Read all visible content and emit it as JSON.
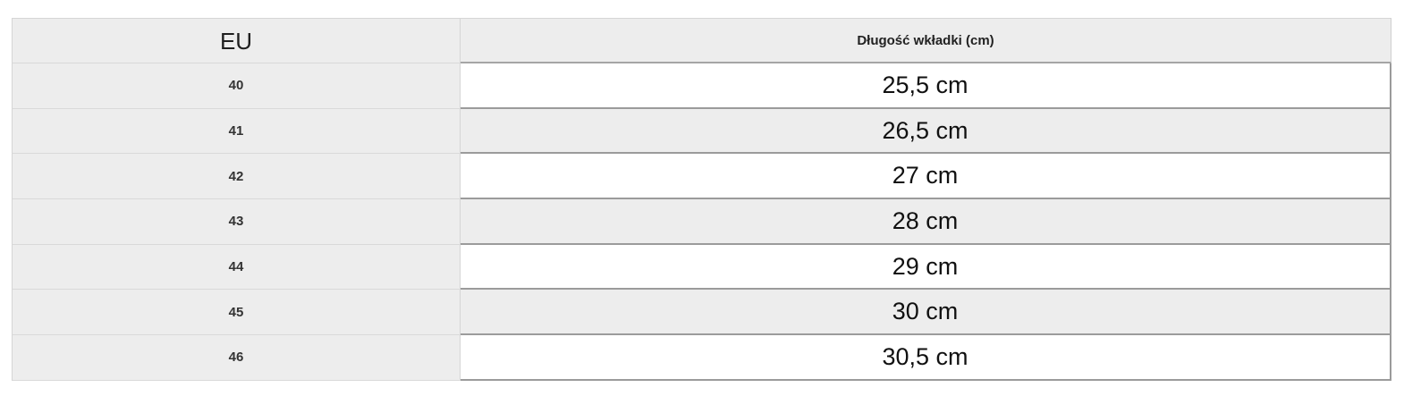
{
  "colors": {
    "cell_gray": "#ededed",
    "row_white": "#ffffff",
    "border_light": "#d5d5d5",
    "border_dark": "#9b9b9b",
    "text_dark": "#111111"
  },
  "size_table": {
    "columns": [
      {
        "label": "EU"
      },
      {
        "label": "Długość wkładki (cm)"
      }
    ],
    "rows": [
      {
        "eu_size": "40",
        "insole_length": "25,5 cm"
      },
      {
        "eu_size": "41",
        "insole_length": "26,5 cm"
      },
      {
        "eu_size": "42",
        "insole_length": "27 cm"
      },
      {
        "eu_size": "43",
        "insole_length": "28 cm"
      },
      {
        "eu_size": "44",
        "insole_length": "29 cm"
      },
      {
        "eu_size": "45",
        "insole_length": "30 cm"
      },
      {
        "eu_size": "46",
        "insole_length": "30,5 cm"
      }
    ]
  }
}
